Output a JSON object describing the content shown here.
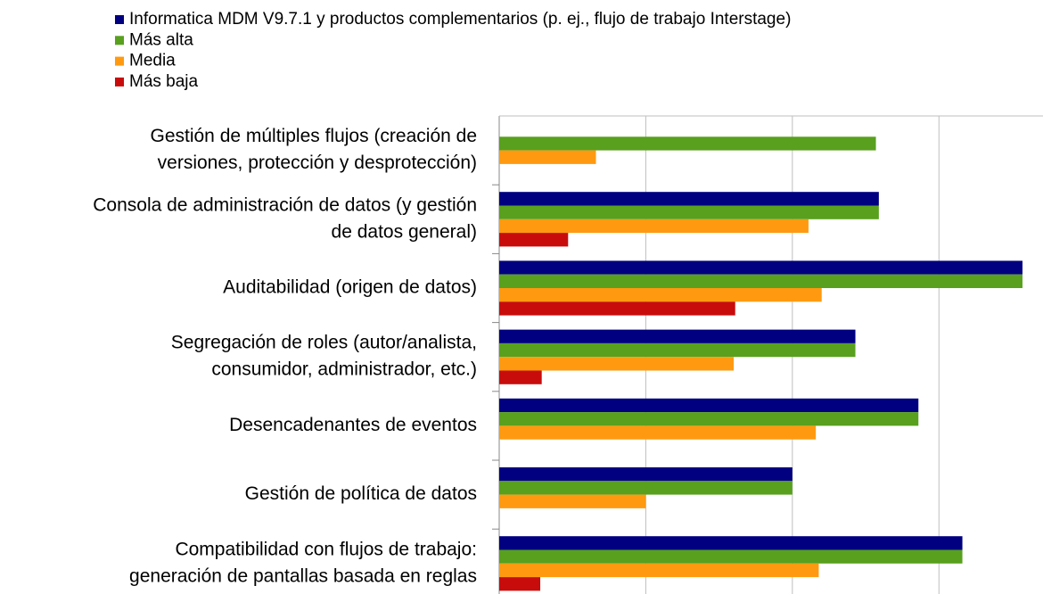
{
  "chart_data": {
    "type": "hbar",
    "categories": [
      [
        "Gestión de múltiples flujos (creación de",
        "versiones, protección y desprotección)"
      ],
      [
        "Consola de administración de datos (y gestión",
        "de datos general)"
      ],
      [
        "Auditabilidad (origen de datos)"
      ],
      [
        "Segregación de roles (autor/analista,",
        "consumidor, administrador, etc.)"
      ],
      [
        "Desencadenantes de eventos"
      ],
      [
        "Gestión de política de datos"
      ],
      [
        "Compatibilidad con flujos de trabajo:",
        "generación de pantallas basada en reglas"
      ]
    ],
    "series": [
      {
        "name": "Informatica MDM V9.7.1 y productos complementarios (p. ej., flujo de trabajo Interstage)",
        "color": "#000080",
        "values": [
          null,
          2.59,
          3.57,
          2.43,
          2.86,
          2.0,
          3.16
        ]
      },
      {
        "name": "Más alta",
        "color": "#58a01e",
        "values": [
          2.57,
          2.59,
          3.57,
          2.43,
          2.86,
          2.0,
          3.16
        ]
      },
      {
        "name": "Media",
        "color": "#ff9a10",
        "values": [
          0.66,
          2.11,
          2.2,
          1.6,
          2.16,
          1.0,
          2.18
        ]
      },
      {
        "name": "Más baja",
        "color": "#c80c0c",
        "values": [
          null,
          0.47,
          1.61,
          0.29,
          null,
          null,
          0.28
        ]
      }
    ],
    "xlim": [
      0,
      3.71
    ],
    "xticks": [
      0,
      1,
      2,
      3
    ],
    "grid": true
  }
}
